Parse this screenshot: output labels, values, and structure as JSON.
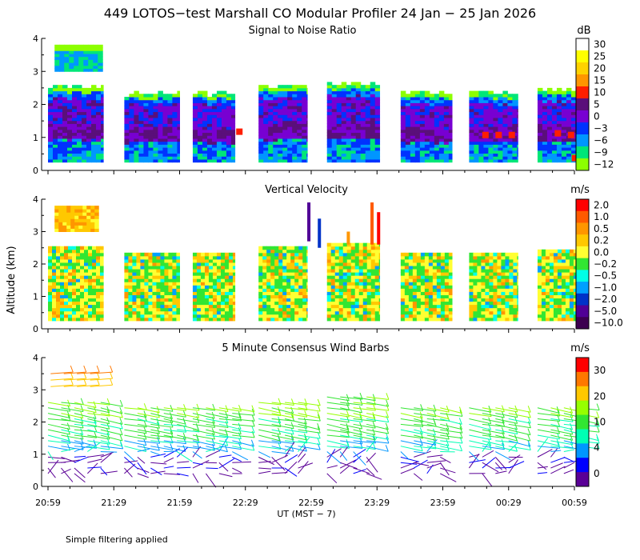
{
  "chart_data": {
    "type": "heatmap",
    "title": "449 LOTOS−test Marshall CO Modular Profiler 24 Jan − 25 Jan 2026",
    "xlabel": "UT  (MST − 7)",
    "ylabel": "Altitude (km)",
    "x_ticks": [
      "20:59",
      "21:29",
      "21:59",
      "22:29",
      "22:59",
      "23:29",
      "23:59",
      "00:29",
      "00:59"
    ],
    "y_ticks": [
      "0",
      "1",
      "2",
      "3",
      "4"
    ],
    "ylim": [
      0,
      4
    ],
    "note": "Simple filtering applied",
    "segments_hours": [
      [
        0,
        0.42
      ],
      [
        0.58,
        1.0
      ],
      [
        1.1,
        1.42
      ],
      [
        1.6,
        1.97
      ],
      [
        2.12,
        2.52
      ],
      [
        2.68,
        3.07
      ],
      [
        3.2,
        3.57
      ],
      [
        3.72,
        4.03
      ]
    ],
    "panels": [
      {
        "title": "Signal to Noise Ratio",
        "unit": "dB",
        "colorbar_ticks": [
          "30",
          "25",
          "20",
          "15",
          "10",
          "5",
          "0",
          "−3",
          "−6",
          "−9",
          "−12"
        ],
        "colors": [
          "#ffffff",
          "#ffff00",
          "#ffd200",
          "#ff9600",
          "#ff1e00",
          "#5a0f7a",
          "#7800d2",
          "#0032ff",
          "#0096ff",
          "#00e678",
          "#8cff00"
        ],
        "series_top_km": [
          2.5,
          2.3,
          2.3,
          2.5,
          2.6,
          2.3,
          2.3,
          2.4
        ]
      },
      {
        "title": "Vertical Velocity",
        "unit": "m/s",
        "colorbar_ticks": [
          "2.0",
          "1.0",
          "0.5",
          "0.2",
          "0.0",
          "−0.2",
          "−0.5",
          "−1.0",
          "−2.0",
          "−5.0",
          "−10.0"
        ],
        "colors": [
          "#ff0000",
          "#ff5a00",
          "#ff9600",
          "#ffc800",
          "#ffff32",
          "#32e632",
          "#00ffe6",
          "#00a0ff",
          "#0032c8",
          "#500096",
          "#3c0050"
        ]
      },
      {
        "title": "5 Minute Consensus Wind Barbs",
        "unit": "m/s",
        "colorbar_ticks": [
          "30",
          "20",
          "10",
          "4",
          "0"
        ],
        "colors": [
          "#ff0000",
          "#ff7800",
          "#ffc800",
          "#96ff00",
          "#32e632",
          "#00ffb4",
          "#0096ff",
          "#0000ff",
          "#5a0096"
        ]
      }
    ]
  }
}
